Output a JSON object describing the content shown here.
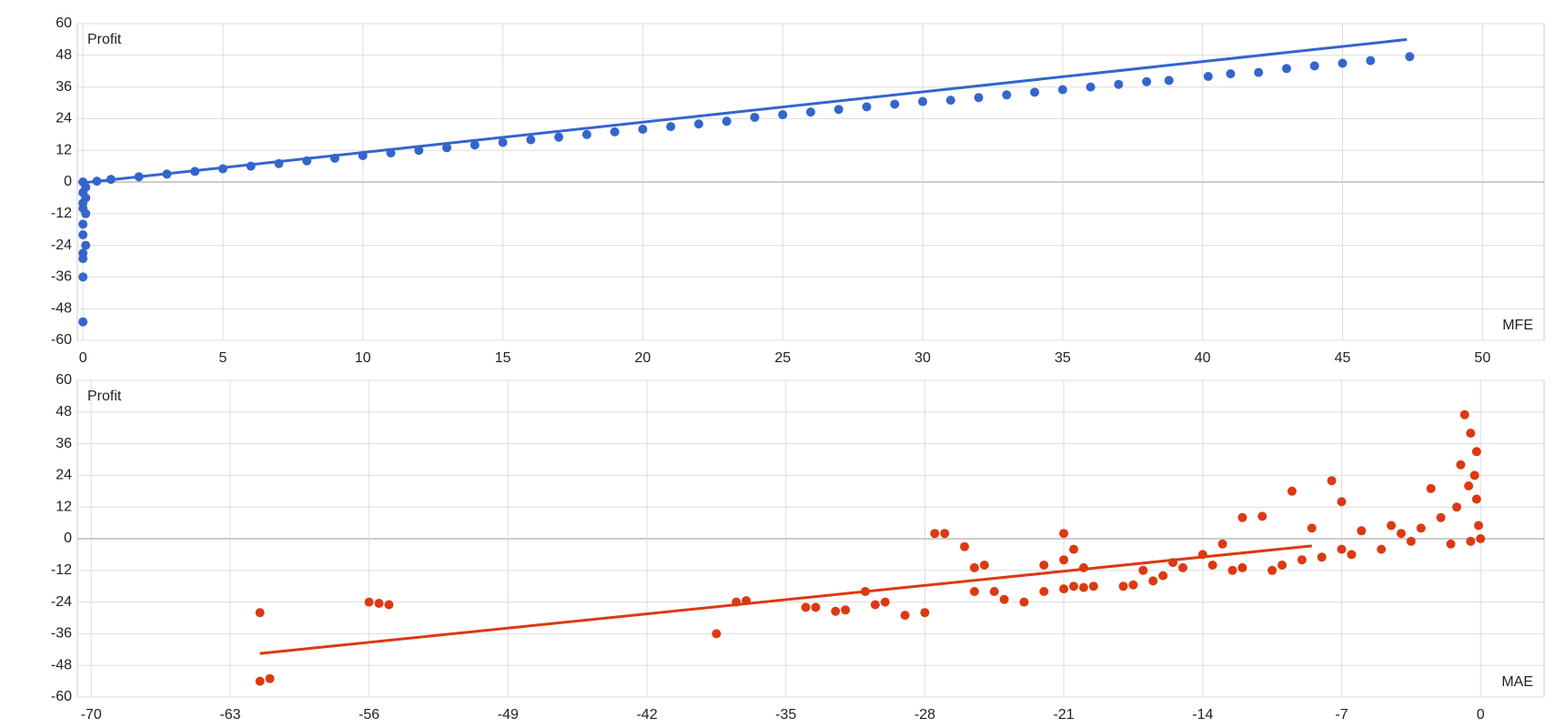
{
  "chart_data": [
    {
      "type": "scatter",
      "y_label": "Profit",
      "x_label": "MFE",
      "color": "#3366cc",
      "x": [
        0,
        0.1,
        0,
        0.1,
        0,
        0,
        0.1,
        0,
        0,
        0.1,
        0,
        0,
        0,
        0,
        0.5,
        1,
        2,
        3,
        4,
        5,
        6,
        7,
        8,
        9,
        10,
        11,
        12,
        13,
        14,
        15,
        16,
        17,
        18,
        19,
        20,
        21,
        22,
        23,
        24,
        25,
        26,
        27,
        28,
        29,
        30,
        31,
        32,
        33,
        34,
        35,
        36,
        37,
        38,
        38.8,
        40.2,
        41,
        42,
        43,
        44,
        45,
        46,
        47.4
      ],
      "values": [
        0,
        -2,
        -4,
        -6,
        -8,
        -10,
        -12,
        -16,
        -20,
        -24,
        -27,
        -29,
        -36,
        -53,
        0.3,
        1,
        2,
        3,
        4,
        5,
        6,
        7,
        8,
        9,
        10,
        11,
        12,
        13,
        14,
        15,
        16,
        17,
        18,
        19,
        20,
        21,
        22,
        23,
        24.5,
        25.5,
        26.5,
        27.5,
        28.5,
        29.5,
        30.5,
        31,
        32,
        33,
        34,
        35,
        36,
        37,
        38,
        38.5,
        40,
        41,
        41.5,
        43,
        44,
        45,
        46,
        47.5
      ],
      "trendline": {
        "x": [
          0,
          47.3
        ],
        "values": [
          -0.3,
          54
        ]
      },
      "xlim": [
        -0.2,
        52.2
      ],
      "xticks": [
        0,
        5,
        10,
        15,
        20,
        25,
        30,
        35,
        40,
        45,
        50
      ],
      "ylim": [
        -60,
        60
      ],
      "yticks": [
        -60,
        -48,
        -36,
        -24,
        -12,
        0,
        12,
        24,
        36,
        48,
        60
      ],
      "grid": true
    },
    {
      "type": "scatter",
      "y_label": "Profit",
      "x_label": "MAE",
      "color": "#dc3912",
      "x": [
        -61.5,
        -61.5,
        -61,
        -56,
        -55.5,
        -55,
        -38.5,
        -37.5,
        -37,
        -34,
        -33.5,
        -32.5,
        -32,
        -31,
        -30.5,
        -30,
        -29,
        -28,
        -27.5,
        -27,
        -26,
        -25.5,
        -25,
        -25.5,
        -24.5,
        -24,
        -23,
        -22,
        -22,
        -21,
        -20.5,
        -21,
        -21,
        -20.5,
        -20,
        -20,
        -19.5,
        -18,
        -17.5,
        -17,
        -16.5,
        -16,
        -15.5,
        -15,
        -14,
        -13.5,
        -13,
        -12.5,
        -12,
        -12,
        -11,
        -10.5,
        -10,
        -9.5,
        -9,
        -8.5,
        -8,
        -7.5,
        -7,
        -7,
        -6.5,
        -6,
        -5,
        -4.5,
        -4,
        -3.5,
        -3,
        -2.5,
        -2,
        -1.5,
        -1.2,
        -1,
        -0.8,
        -0.5,
        -0.5,
        -0.3,
        -0.2,
        -0.1,
        0,
        -0.2,
        -0.6
      ],
      "values": [
        -28,
        -54,
        -53,
        -24,
        -24.5,
        -25,
        -36,
        -24,
        -23.5,
        -26,
        -26,
        -27.5,
        -27,
        -20,
        -25,
        -24,
        -29,
        -28,
        2,
        2,
        -3,
        -11,
        -10,
        -20,
        -20,
        -23,
        -24,
        -10,
        -20,
        -19,
        -18,
        -8,
        2,
        -4,
        -11,
        -18.5,
        -18,
        -18,
        -17.5,
        -12,
        -16,
        -14,
        -9,
        -11,
        -6,
        -10,
        -2,
        -12,
        -11,
        8,
        8.5,
        -12,
        -10,
        18,
        -8,
        4,
        -7,
        22,
        14,
        -4,
        -6,
        3,
        -4,
        5,
        2,
        -1,
        4,
        19,
        8,
        -2,
        12,
        28,
        47,
        40,
        -1,
        24,
        15,
        5,
        0,
        33,
        20
      ],
      "trendline": {
        "x": [
          -61.5,
          -8.5
        ],
        "values": [
          -43.5,
          -2.7
        ]
      },
      "xlim": [
        -70.7,
        3.2
      ],
      "xticks": [
        -70,
        -63,
        -56,
        -49,
        -42,
        -35,
        -28,
        -21,
        -14,
        -7,
        0
      ],
      "ylim": [
        -60,
        60
      ],
      "yticks": [
        -60,
        -48,
        -36,
        -24,
        -12,
        0,
        12,
        24,
        36,
        48,
        60
      ],
      "grid": true
    }
  ]
}
